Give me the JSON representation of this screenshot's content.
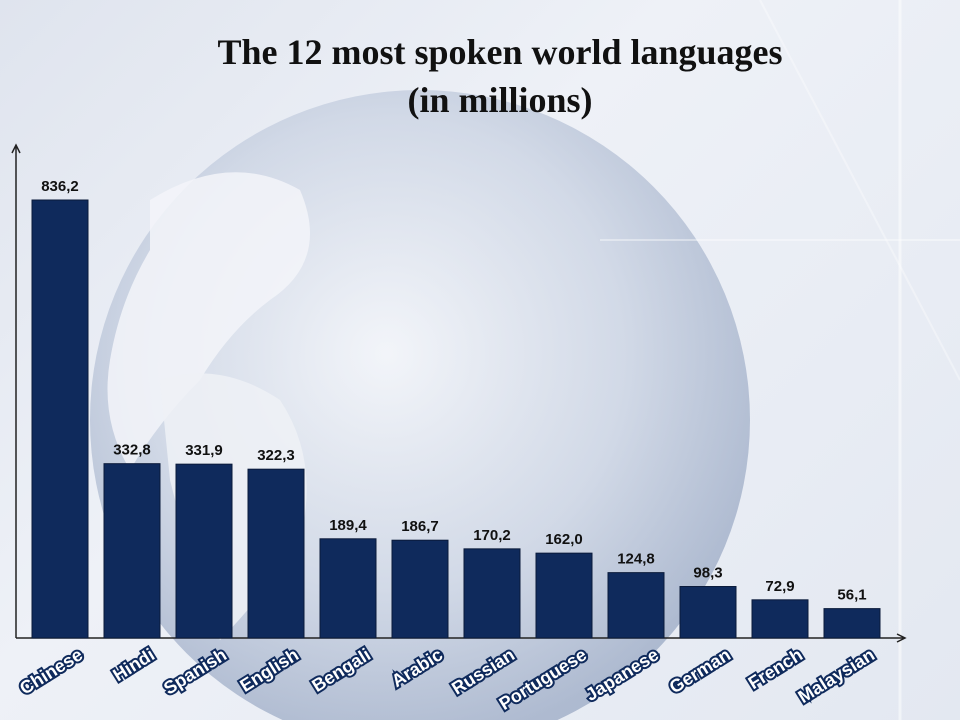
{
  "title": {
    "line1": "The 12 most spoken world languages",
    "line2": "(in millions)"
  },
  "chart_data": {
    "type": "bar",
    "title": "The 12 most spoken world languages (in millions)",
    "categories": [
      "Chinese",
      "Hindi",
      "Spanish",
      "English",
      "Bengali",
      "Arabic",
      "Russian",
      "Portuguese",
      "Japanese",
      "German",
      "French",
      "Malaysian"
    ],
    "values": [
      836.2,
      332.8,
      331.9,
      322.3,
      189.4,
      186.7,
      170.2,
      162.0,
      124.8,
      98.3,
      72.9,
      56.1
    ],
    "value_labels": [
      "836,2",
      "332,8",
      "331,9",
      "322,3",
      "189,4",
      "186,7",
      "170,2",
      "162,0",
      "124,8",
      "98,3",
      "72,9",
      "56,1"
    ],
    "ylim": [
      0,
      836.2
    ],
    "grid": false,
    "legend": "none",
    "bar_color": "#0f2a5c"
  }
}
